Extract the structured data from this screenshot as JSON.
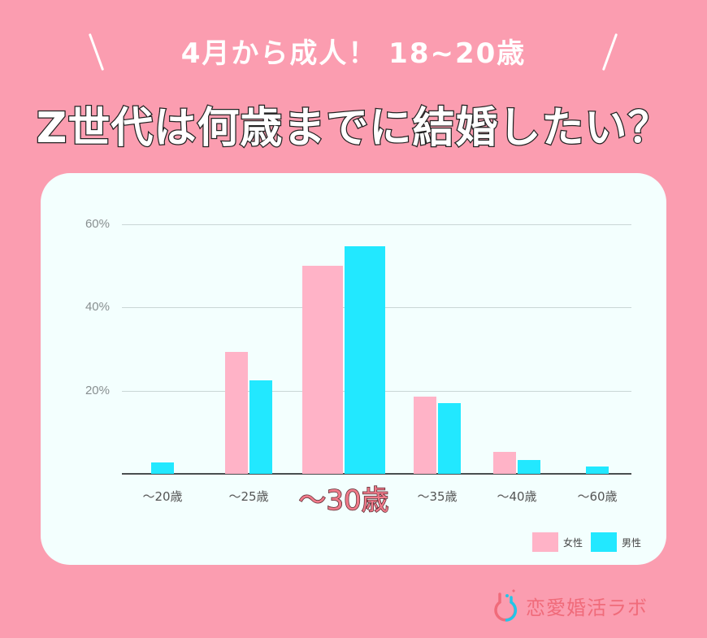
{
  "header": {
    "subtitle": "4月から成人！ 18~20歳",
    "title": "Z世代は何歳までに結婚したい？"
  },
  "colors": {
    "background": "#fb9db0",
    "card": "#f3fffe",
    "female": "#ffb3c7",
    "male": "#22e8ff",
    "highlight_label": "#f07a8a"
  },
  "chart_data": {
    "type": "bar",
    "title": "Z世代は何歳までに結婚したい？",
    "xlabel": "",
    "ylabel": "",
    "ylim": [
      0,
      60
    ],
    "yticks": [
      "20%",
      "40%",
      "60%"
    ],
    "grid": true,
    "legend_position": "bottom-right",
    "categories": [
      "～20歳",
      "～25歳",
      "～30歳",
      "～35歳",
      "～40歳",
      "～60歳"
    ],
    "highlighted_category": "～30歳",
    "series": [
      {
        "name": "女性",
        "values": [
          0,
          29.4,
          50.0,
          18.6,
          5.3,
          0
        ]
      },
      {
        "name": "男性",
        "values": [
          2.7,
          22.4,
          54.7,
          17.1,
          3.3,
          1.8
        ]
      }
    ]
  },
  "legend": {
    "female": "女性",
    "male": "男性"
  },
  "footer": {
    "brand": "恋愛婚活ラボ"
  }
}
